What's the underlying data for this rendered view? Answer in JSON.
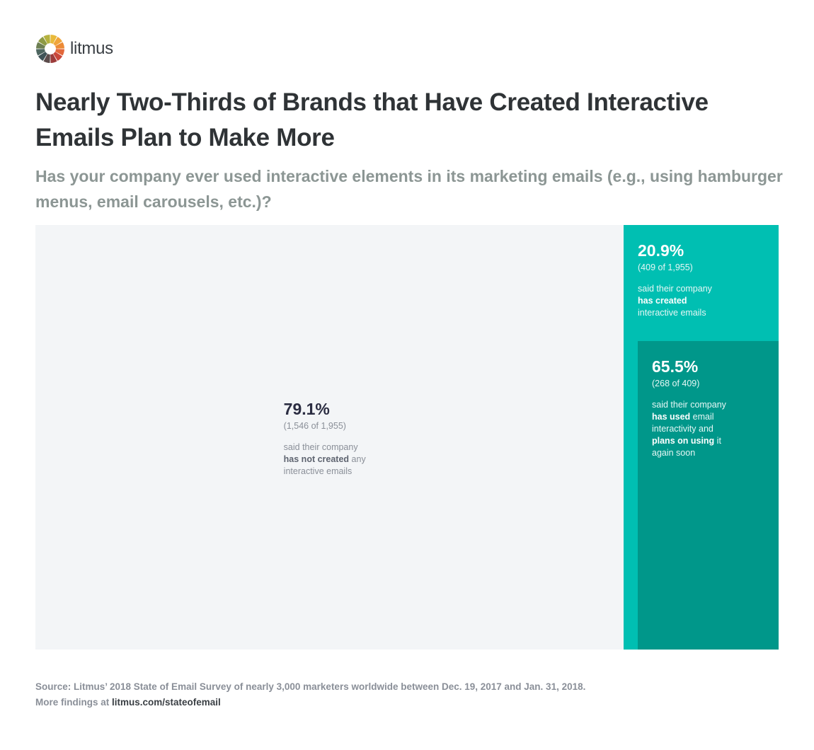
{
  "brand": {
    "name": "litmus",
    "logo_colors": [
      "#e8b93a",
      "#f0a53b",
      "#ec8a35",
      "#e2673a",
      "#c9463a",
      "#9c3b3a",
      "#5b4b4b",
      "#3f5357",
      "#4e6660",
      "#6d7f52",
      "#8d9a45",
      "#b5b23f"
    ]
  },
  "title": "Nearly Two-Thirds of Brands that Have Created Interactive Emails Plan to Make More",
  "subtitle": "Has your company ever used interactive elements in its marketing emails (e.g., using hamburger menus, email carousels, etc.)?",
  "chart_data": {
    "type": "treemap",
    "segments": [
      {
        "name": "has not created",
        "value": 79.1,
        "count": 1546,
        "base": 1955,
        "pct_label": "79.1%",
        "count_label": "(1,546 of 1,955)",
        "desc": {
          "pre": "said their company",
          "bold": "has not created",
          "post": " any",
          "tail": "interactive emails"
        },
        "color": "#f3f5f7"
      },
      {
        "name": "has created",
        "value": 20.9,
        "count": 409,
        "base": 1955,
        "pct_label": "20.9%",
        "count_label": "(409 of 1,955)",
        "desc": {
          "pre": "said their company",
          "bold": "has created",
          "tail": "interactive emails"
        },
        "color": "#00bfb2"
      },
      {
        "name": "plans on using again",
        "parent": "has created",
        "value": 65.5,
        "count": 268,
        "base": 409,
        "pct_label": "65.5%",
        "count_label": "(268 of 409)",
        "desc": {
          "pre": "said their company",
          "bold1": "has used",
          "mid1": " email",
          "mid2": "interactivity and",
          "bold2": "plans on using",
          "mid3": " it",
          "tail": "again soon"
        },
        "color": "#00978a"
      }
    ]
  },
  "source": {
    "text": "Source: Litmus’ 2018 State of Email Survey of nearly 3,000 marketers worldwide between Dec. 19, 2017 and Jan. 31, 2018.",
    "more_prefix": "More findings at ",
    "link": "litmus.com/stateofemail"
  }
}
